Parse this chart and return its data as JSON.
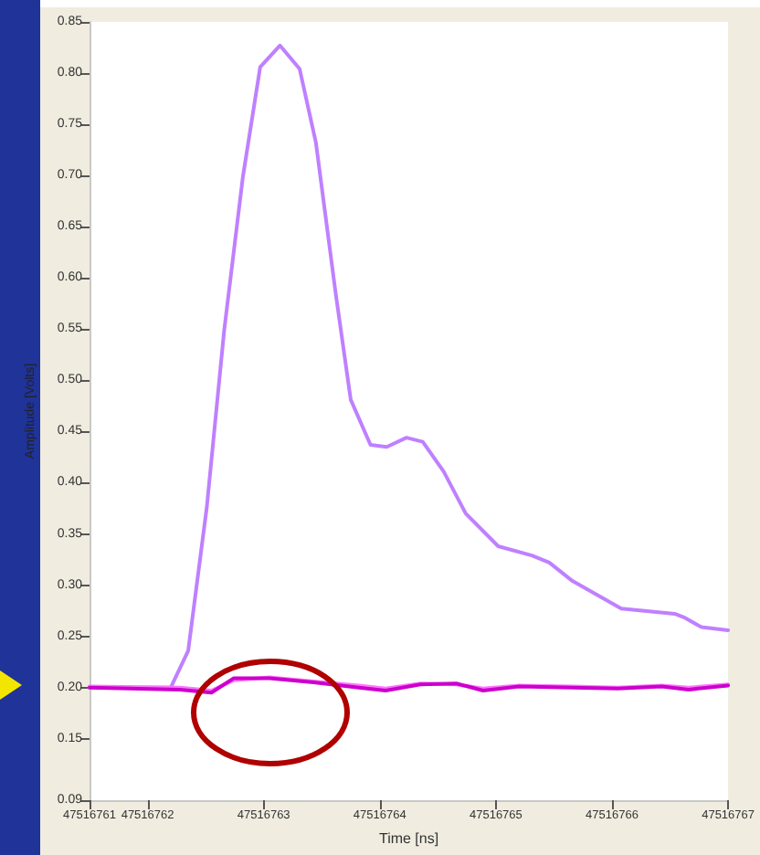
{
  "chart_data": {
    "type": "line",
    "xlabel": "Time [ns]",
    "ylabel": "Amplitude [Volts]",
    "xlim": [
      47516761.5,
      47516767
    ],
    "xticks": [
      {
        "value": 47516761.5,
        "label": "47516761"
      },
      47516762,
      47516763,
      47516764,
      47516765,
      47516766,
      47516767
    ],
    "ylim": [
      0.09,
      0.85
    ],
    "yticks": [
      0.09,
      0.15,
      {
        "value": 0.2,
        "label": "0.20"
      },
      0.25,
      {
        "value": 0.3,
        "label": "0.30"
      },
      0.35,
      {
        "value": 0.4,
        "label": "0.40"
      },
      0.45,
      {
        "value": 0.5,
        "label": "0.50"
      },
      0.55,
      {
        "value": 0.6,
        "label": "0.60"
      },
      0.65,
      {
        "value": 0.7,
        "label": "0.70"
      },
      0.75,
      {
        "value": 0.8,
        "label": "0.80"
      },
      0.85
    ],
    "grid": false,
    "marker": "none",
    "line_style": "solid",
    "series": [
      {
        "color": "#bf80ff",
        "x": [
          47516761.5,
          47516762,
          47516762.2,
          47516762.35,
          47516762.51,
          47516762.66,
          47516762.82,
          47516762.97,
          47516763.14,
          47516763.31,
          47516763.45,
          47516763.62,
          47516763.75,
          47516763.92,
          47516764.06,
          47516764.23,
          47516764.37,
          47516764.55,
          47516764.74,
          47516765.02,
          47516765.31,
          47516765.46,
          47516765.66,
          47516766.08,
          47516766.54,
          47516766.63,
          47516766.77,
          47516767
        ],
        "values": [
          0.2,
          0.2,
          0.2,
          0.236,
          0.376,
          0.549,
          0.698,
          0.806,
          0.827,
          0.804,
          0.732,
          0.585,
          0.481,
          0.437,
          0.435,
          0.444,
          0.44,
          0.411,
          0.37,
          0.338,
          0.329,
          0.322,
          0.304,
          0.277,
          0.272,
          0.268,
          0.259,
          0.256
        ]
      },
      {
        "color": "#ff77ff",
        "x": [
          47516761.5,
          47516762.28,
          47516762.55,
          47516762.74,
          47516763.05,
          47516763.43,
          47516763.82,
          47516764.05,
          47516764.35,
          47516764.66,
          47516764.89,
          47516765.2,
          47516765.66,
          47516766.05,
          47516766.43,
          47516766.66,
          47516767
        ],
        "values": [
          0.201,
          0.2,
          0.197,
          0.207,
          0.21,
          0.206,
          0.202,
          0.199,
          0.204,
          0.203,
          0.199,
          0.202,
          0.201,
          0.2,
          0.202,
          0.2,
          0.203
        ]
      },
      {
        "color": "#cc00cc",
        "x": [
          47516761.5,
          47516762.28,
          47516762.55,
          47516762.74,
          47516763.05,
          47516763.43,
          47516763.82,
          47516764.05,
          47516764.35,
          47516764.66,
          47516764.89,
          47516765.2,
          47516765.66,
          47516766.05,
          47516766.43,
          47516766.66,
          47516767
        ],
        "values": [
          0.2,
          0.198,
          0.195,
          0.209,
          0.209,
          0.205,
          0.2,
          0.197,
          0.203,
          0.204,
          0.197,
          0.201,
          0.2,
          0.199,
          0.201,
          0.198,
          0.202
        ]
      }
    ]
  }
}
